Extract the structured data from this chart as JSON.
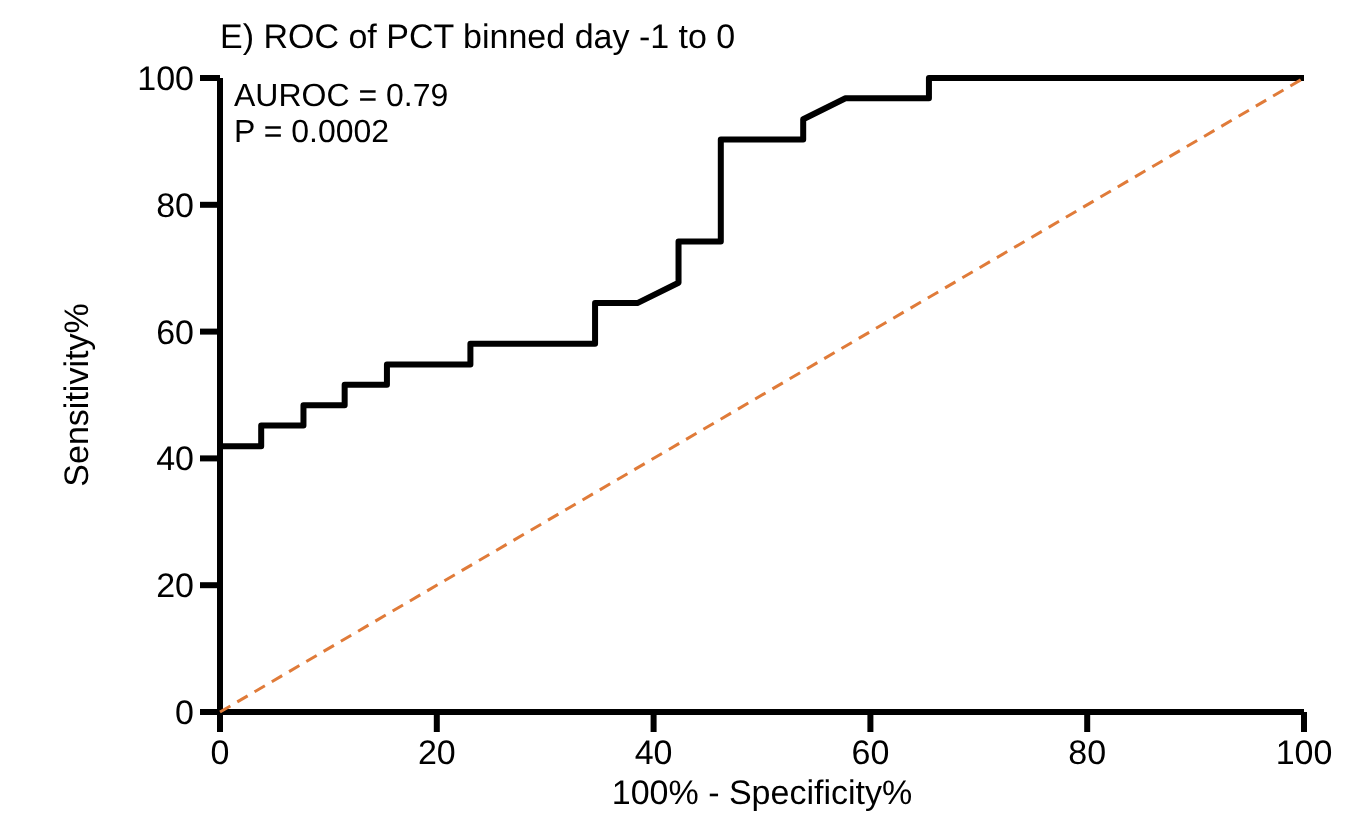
{
  "chart_data": {
    "type": "line",
    "title": "E) ROC of PCT binned day -1 to 0",
    "xlabel": "100% - Specificity%",
    "ylabel": "Sensitivity%",
    "xlim": [
      0,
      100
    ],
    "ylim": [
      0,
      100
    ],
    "xticks": [
      0,
      20,
      40,
      60,
      80,
      100
    ],
    "yticks": [
      0,
      20,
      40,
      60,
      80,
      100
    ],
    "grid": false,
    "marker": "none",
    "annotations": [
      "AUROC = 0.79",
      "P = 0.0002"
    ],
    "series": [
      {
        "color": "#000000",
        "line_style": "solid",
        "x": [
          0,
          0,
          3.8,
          3.8,
          7.7,
          7.7,
          11.5,
          11.5,
          15.4,
          15.4,
          23.1,
          23.1,
          34.6,
          34.6,
          38.5,
          42.3,
          42.3,
          46.2,
          46.2,
          53.8,
          53.8,
          57.7,
          65.4,
          65.4,
          100
        ],
        "values": [
          0,
          41.9,
          41.9,
          45.2,
          45.2,
          48.4,
          48.4,
          51.6,
          51.6,
          54.8,
          54.8,
          58.1,
          58.1,
          64.5,
          64.5,
          67.7,
          74.2,
          74.2,
          90.3,
          90.3,
          93.5,
          96.8,
          96.8,
          100,
          100
        ]
      },
      {
        "color": "#e07b39",
        "line_style": "dashed",
        "x": [
          0,
          100
        ],
        "values": [
          0,
          100
        ]
      }
    ]
  }
}
